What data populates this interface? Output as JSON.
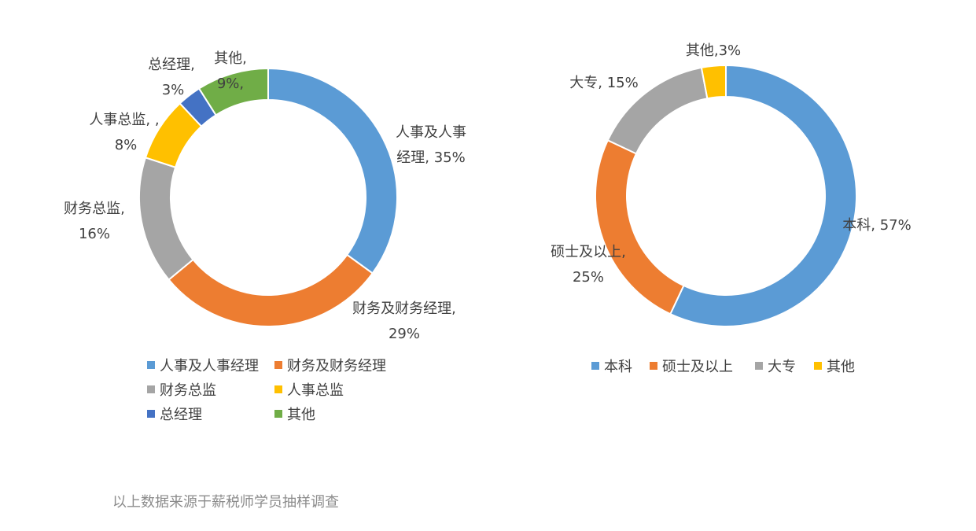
{
  "chart_data": [
    {
      "type": "pie",
      "title": "",
      "donut": true,
      "categories": [
        "人事及人事经理",
        "财务及财务经理",
        "财务总监",
        "人事总监",
        "总经理",
        "其他"
      ],
      "values": [
        35,
        29,
        16,
        8,
        3,
        9
      ],
      "colors": [
        "#5B9BD5",
        "#ED7D31",
        "#A5A5A5",
        "#FFC000",
        "#4472C4",
        "#70AD47"
      ],
      "data_labels": [
        [
          "人事及人事",
          "经理, 35%"
        ],
        [
          "财务及财务经理,",
          "29%"
        ],
        [
          "财务总监,",
          "16%"
        ],
        [
          "人事总监, ,",
          "8%"
        ],
        [
          "总经理,",
          "3%"
        ],
        [
          "其他,",
          "9%,"
        ]
      ],
      "legend_position": "bottom"
    },
    {
      "type": "pie",
      "title": "",
      "donut": true,
      "categories": [
        "本科",
        "硕士及以上",
        "大专",
        "其他"
      ],
      "values": [
        57,
        25,
        15,
        3
      ],
      "colors": [
        "#5B9BD5",
        "#ED7D31",
        "#A5A5A5",
        "#FFC000"
      ],
      "data_labels": [
        [
          "本科, 57%"
        ],
        [
          "硕士及以上,",
          "25%"
        ],
        [
          "大专, 15%"
        ],
        [
          "其他,3%"
        ]
      ],
      "legend_position": "bottom"
    }
  ],
  "footnote": "以上数据来源于薪税师学员抽样调查"
}
